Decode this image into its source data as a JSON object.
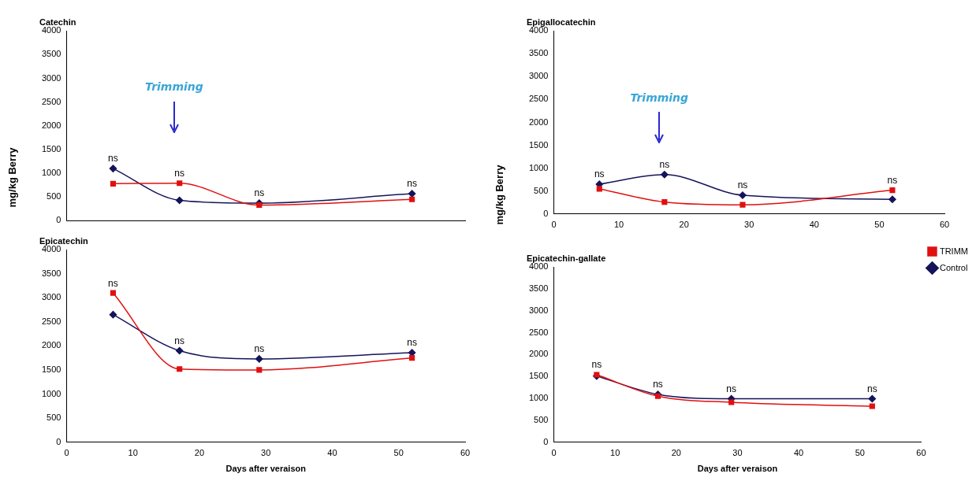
{
  "chart_data": [
    {
      "type": "line",
      "title": "Catechin",
      "x": [
        7,
        17,
        29,
        52
      ],
      "xlim": [
        0,
        60
      ],
      "xticks": [
        0,
        10,
        20,
        30,
        40,
        50,
        60
      ],
      "ylim": [
        0,
        4000
      ],
      "yticks": [
        0,
        500,
        1000,
        1500,
        2000,
        2500,
        3000,
        3500,
        4000
      ],
      "tick_labels": "y",
      "grid": false,
      "legend": false,
      "line_style": "solid",
      "series": [
        {
          "color": "#14145a",
          "marker": "diamond",
          "values": [
            1100,
            430,
            370,
            570
          ]
        },
        {
          "color": "#e01010",
          "marker": "square",
          "values": [
            780,
            790,
            330,
            450
          ]
        }
      ],
      "annotations": [
        "Trimming",
        {
          "text": "ns",
          "x": 7,
          "y": 1100
        },
        {
          "text": "ns",
          "x": 17,
          "y": 790
        },
        {
          "text": "ns",
          "x": 29,
          "y": 370
        },
        {
          "text": "ns",
          "x": 52,
          "y": 570
        }
      ]
    },
    {
      "type": "line",
      "title": "Epicatechin",
      "xlabel": "Days after veraison",
      "ylabel": "mg/kg Berry",
      "x": [
        7,
        17,
        29,
        52
      ],
      "xlim": [
        0,
        60
      ],
      "xticks": [
        0,
        10,
        20,
        30,
        40,
        50,
        60
      ],
      "ylim": [
        0,
        4000
      ],
      "yticks": [
        0,
        500,
        1000,
        1500,
        2000,
        2500,
        3000,
        3500,
        4000
      ],
      "grid": false,
      "legend": false,
      "line_style": "solid",
      "series": [
        {
          "color": "#14145a",
          "marker": "diamond",
          "values": [
            2650,
            1900,
            1730,
            1860
          ]
        },
        {
          "color": "#e01010",
          "marker": "square",
          "values": [
            3100,
            1520,
            1500,
            1750
          ]
        }
      ],
      "annotations": [
        {
          "text": "ns",
          "x": 7,
          "y": 3100
        },
        {
          "text": "ns",
          "x": 17,
          "y": 1900
        },
        {
          "text": "ns",
          "x": 29,
          "y": 1730
        },
        {
          "text": "ns",
          "x": 52,
          "y": 1860
        }
      ]
    },
    {
      "type": "line",
      "title": "Epigallocatechin",
      "x": [
        7,
        17,
        29,
        52
      ],
      "xlim": [
        0,
        60
      ],
      "xticks": [
        0,
        10,
        20,
        30,
        40,
        50,
        60
      ],
      "ylim": [
        0,
        4000
      ],
      "yticks": [
        0,
        500,
        1000,
        1500,
        2000,
        2500,
        3000,
        3500,
        4000
      ],
      "grid": false,
      "legend": false,
      "line_style": "solid",
      "series": [
        {
          "color": "#14145a",
          "marker": "diamond",
          "values": [
            650,
            860,
            410,
            320
          ]
        },
        {
          "color": "#e01010",
          "marker": "square",
          "values": [
            550,
            260,
            200,
            520
          ]
        }
      ],
      "annotations": [
        "Trimming",
        {
          "text": "ns",
          "x": 7,
          "y": 650
        },
        {
          "text": "ns",
          "x": 17,
          "y": 860
        },
        {
          "text": "ns",
          "x": 29,
          "y": 410
        },
        {
          "text": "ns",
          "x": 52,
          "y": 520
        }
      ]
    },
    {
      "type": "line",
      "title": "Epicatechin-gallate",
      "xlabel": "Days after veraison",
      "ylabel": "mg/kg Berry",
      "x": [
        7,
        17,
        29,
        52
      ],
      "xlim": [
        0,
        60
      ],
      "xticks": [
        0,
        10,
        20,
        30,
        40,
        50,
        60
      ],
      "ylim": [
        0,
        4000
      ],
      "yticks": [
        0,
        500,
        1000,
        1500,
        2000,
        2500,
        3000,
        3500,
        4000
      ],
      "grid": false,
      "legend": "top right",
      "line_style": "solid",
      "series": [
        {
          "name": "Control",
          "color": "#14145a",
          "marker": "diamond",
          "values": [
            1510,
            1090,
            990,
            990
          ]
        },
        {
          "name": "TRIMM",
          "color": "#e01010",
          "marker": "square",
          "values": [
            1540,
            1050,
            910,
            820
          ]
        }
      ],
      "annotations": [
        {
          "text": "ns",
          "x": 7,
          "y": 1540
        },
        {
          "text": "ns",
          "x": 17,
          "y": 1090
        },
        {
          "text": "ns",
          "x": 29,
          "y": 990
        },
        {
          "text": "ns",
          "x": 52,
          "y": 990
        }
      ]
    }
  ]
}
